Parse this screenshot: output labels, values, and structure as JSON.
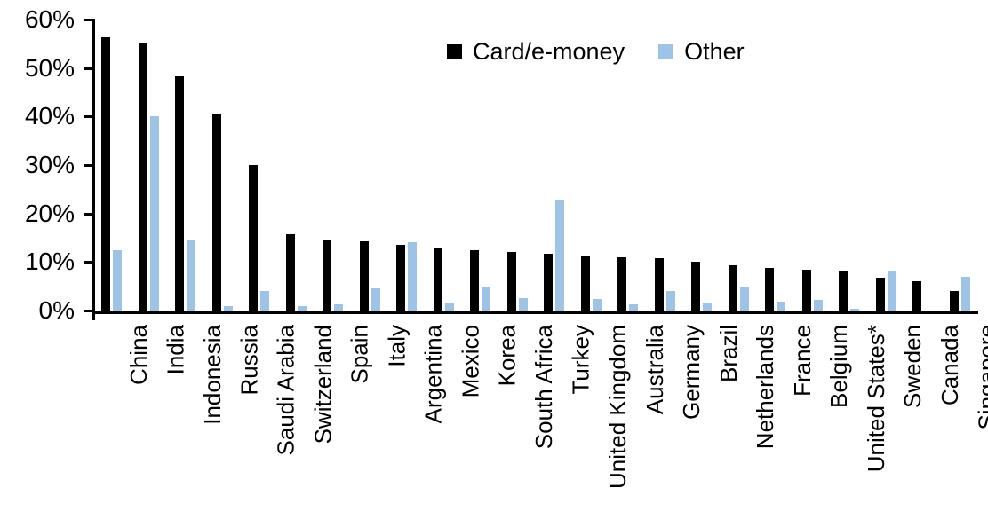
{
  "chart_data": {
    "type": "bar",
    "title": "",
    "categories": [
      "China",
      "India",
      "Indonesia",
      "Russia",
      "Saudi Arabia",
      "Switzerland",
      "Spain",
      "Italy",
      "Argentina",
      "Mexico",
      "Korea",
      "South Africa",
      "Turkey",
      "United Kingdom",
      "Australia",
      "Germany",
      "Brazil",
      "Netherlands",
      "France",
      "Belgium",
      "United States*",
      "Sweden",
      "Canada",
      "Singapore"
    ],
    "series": [
      {
        "name": "Card/e-money",
        "color": "#000000",
        "values": [
          56.3,
          55.0,
          48.3,
          40.5,
          30.0,
          15.7,
          14.4,
          14.2,
          13.5,
          13.0,
          12.4,
          12.0,
          11.7,
          11.2,
          11.0,
          10.8,
          10.1,
          9.4,
          8.8,
          8.4,
          8.0,
          6.7,
          6.1,
          4.0
        ]
      },
      {
        "name": "Other",
        "color": "#9DC3E6",
        "values": [
          12.5,
          40.0,
          14.7,
          1.0,
          4.1,
          1.0,
          1.2,
          4.6,
          14.0,
          1.4,
          4.7,
          2.5,
          22.8,
          2.4,
          1.2,
          4.0,
          1.4,
          4.9,
          1.8,
          2.2,
          0.4,
          8.2,
          0,
          6.9
        ]
      }
    ],
    "xlabel": "",
    "ylabel": "",
    "ylim": [
      0,
      60
    ],
    "ytick_step": 10,
    "ytick_labels": [
      "0%",
      "10%",
      "20%",
      "30%",
      "40%",
      "50%",
      "60%"
    ],
    "grid": false,
    "legend_position": "top-center",
    "x_label_rotation_deg": -90
  }
}
